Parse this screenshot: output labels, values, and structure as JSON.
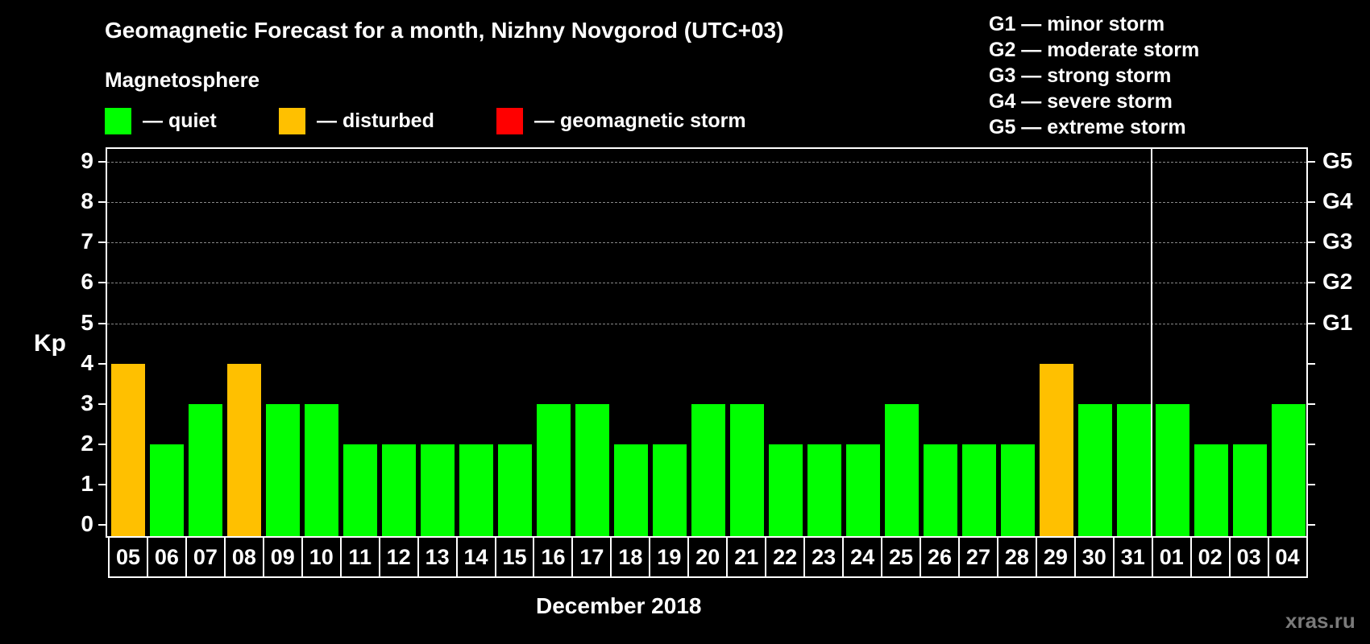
{
  "header": {
    "title": "Geomagnetic Forecast for a month, Nizhny Novgorod (UTC+03)",
    "subtitle": "Magnetosphere"
  },
  "legend": [
    {
      "label": "— quiet",
      "color": "#00ff00"
    },
    {
      "label": "— disturbed",
      "color": "#ffc000"
    },
    {
      "label": "— geomagnetic storm",
      "color": "#ff0000"
    }
  ],
  "storm_levels": [
    "G1 — minor storm",
    "G2 — moderate storm",
    "G3 — strong storm",
    "G4 — severe storm",
    "G5 — extreme storm"
  ],
  "axis": {
    "ylabel": "Kp",
    "yticks": [
      "0",
      "1",
      "2",
      "3",
      "4",
      "5",
      "6",
      "7",
      "8",
      "9"
    ],
    "right_ticks": [
      {
        "kp": 5,
        "label": "G1"
      },
      {
        "kp": 6,
        "label": "G2"
      },
      {
        "kp": 7,
        "label": "G3"
      },
      {
        "kp": 8,
        "label": "G4"
      },
      {
        "kp": 9,
        "label": "G5"
      }
    ],
    "xlabel": "December 2018"
  },
  "watermark": "xras.ru",
  "chart_data": {
    "type": "bar",
    "title": "Geomagnetic Forecast for a month, Nizhny Novgorod (UTC+03)",
    "xlabel": "December 2018",
    "ylabel": "Kp",
    "ylim": [
      0,
      9
    ],
    "grid": "horizontal dashed at Kp 5-9",
    "categories": [
      "05",
      "06",
      "07",
      "08",
      "09",
      "10",
      "11",
      "12",
      "13",
      "14",
      "15",
      "16",
      "17",
      "18",
      "19",
      "20",
      "21",
      "22",
      "23",
      "24",
      "25",
      "26",
      "27",
      "28",
      "29",
      "30",
      "31",
      "01",
      "02",
      "03",
      "04"
    ],
    "values": [
      4,
      2,
      3,
      4,
      3,
      3,
      2,
      2,
      2,
      2,
      2,
      3,
      3,
      2,
      2,
      3,
      3,
      2,
      2,
      2,
      3,
      2,
      2,
      2,
      4,
      3,
      3,
      3,
      2,
      2,
      3
    ],
    "status": [
      "disturbed",
      "quiet",
      "quiet",
      "disturbed",
      "quiet",
      "quiet",
      "quiet",
      "quiet",
      "quiet",
      "quiet",
      "quiet",
      "quiet",
      "quiet",
      "quiet",
      "quiet",
      "quiet",
      "quiet",
      "quiet",
      "quiet",
      "quiet",
      "quiet",
      "quiet",
      "quiet",
      "quiet",
      "disturbed",
      "quiet",
      "quiet",
      "quiet",
      "quiet",
      "quiet",
      "quiet"
    ],
    "month_divider_after": "31",
    "legend": [
      "quiet",
      "disturbed",
      "geomagnetic storm"
    ]
  }
}
